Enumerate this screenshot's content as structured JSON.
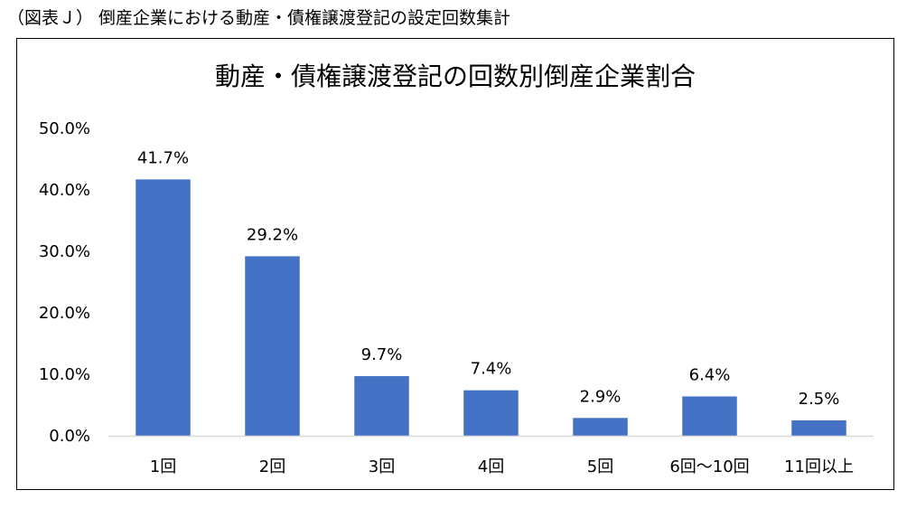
{
  "caption": "（図表Ｊ） 倒産企業における動産・債権譲渡登記の設定回数集計",
  "chart_data": {
    "type": "bar",
    "title": "動産・債権譲渡登記の回数別倒産企業割合",
    "xlabel": "",
    "ylabel": "",
    "categories": [
      "1回",
      "2回",
      "3回",
      "4回",
      "5回",
      "6回～10回",
      "11回以上"
    ],
    "values": [
      41.7,
      29.2,
      9.7,
      7.4,
      2.9,
      6.4,
      2.5
    ],
    "data_labels": [
      "41.7%",
      "29.2%",
      "9.7%",
      "7.4%",
      "2.9%",
      "6.4%",
      "2.5%"
    ],
    "ylim": [
      0,
      50
    ],
    "yticks": [
      0,
      10,
      20,
      30,
      40,
      50
    ],
    "ytick_labels": [
      "0.0%",
      "10.0%",
      "20.0%",
      "30.0%",
      "40.0%",
      "50.0%"
    ],
    "grid": false,
    "legend": "none",
    "bar_color": "#4472C4"
  }
}
